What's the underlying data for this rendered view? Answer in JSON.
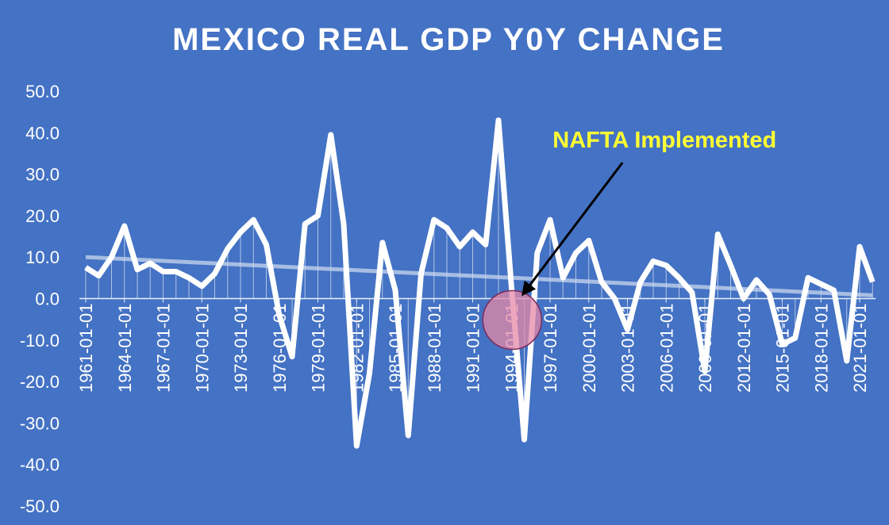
{
  "chart_data": {
    "type": "line",
    "title": "MEXICO REAL GDP Y0Y CHANGE",
    "x": [
      "1961-01-01",
      "1962-01-01",
      "1963-01-01",
      "1964-01-01",
      "1965-01-01",
      "1966-01-01",
      "1967-01-01",
      "1968-01-01",
      "1969-01-01",
      "1970-01-01",
      "1971-01-01",
      "1972-01-01",
      "1973-01-01",
      "1974-01-01",
      "1975-01-01",
      "1976-01-01",
      "1977-01-01",
      "1978-01-01",
      "1979-01-01",
      "1980-01-01",
      "1981-01-01",
      "1982-01-01",
      "1983-01-01",
      "1984-01-01",
      "1985-01-01",
      "1986-01-01",
      "1987-01-01",
      "1988-01-01",
      "1989-01-01",
      "1990-01-01",
      "1991-01-01",
      "1992-01-01",
      "1993-01-01",
      "1994-01-01",
      "1995-01-01",
      "1996-01-01",
      "1997-01-01",
      "1998-01-01",
      "1999-01-01",
      "2000-01-01",
      "2001-01-01",
      "2002-01-01",
      "2003-01-01",
      "2004-01-01",
      "2005-01-01",
      "2006-01-01",
      "2007-01-01",
      "2008-01-01",
      "2009-01-01",
      "2010-01-01",
      "2011-01-01",
      "2012-01-01",
      "2013-01-01",
      "2014-01-01",
      "2015-01-01",
      "2016-01-01",
      "2017-01-01",
      "2018-01-01",
      "2019-01-01",
      "2020-01-01",
      "2021-01-01",
      "2022-01-01"
    ],
    "values": [
      7.5,
      5.5,
      10,
      17.5,
      7,
      8.5,
      6.5,
      6.5,
      5,
      3,
      6,
      12,
      16,
      19,
      13,
      -4,
      -14,
      18,
      20,
      39.5,
      18,
      -35.5,
      -18,
      13.5,
      2,
      -33,
      6,
      19,
      17,
      12.5,
      16,
      13,
      43,
      3,
      -34,
      11,
      19,
      5,
      11,
      14,
      4,
      0,
      -7.5,
      4,
      9,
      8,
      5,
      1.5,
      -17.5,
      15.5,
      8,
      0,
      4.5,
      1,
      -11,
      -9.5,
      5,
      3.5,
      2,
      -15,
      12.5,
      4
    ],
    "color": "#ffffff",
    "trendline": {
      "color": "#c9d6ee",
      "values": [
        10,
        0.8
      ]
    },
    "ylim": [
      -50,
      50
    ],
    "yticks": [
      {
        "value": 50,
        "label": "50.0"
      },
      {
        "value": 40,
        "label": "40.0"
      },
      {
        "value": 30,
        "label": "30.0"
      },
      {
        "value": 20,
        "label": "20.0"
      },
      {
        "value": 10,
        "label": "10.0"
      },
      {
        "value": 0,
        "label": "0.0"
      },
      {
        "value": -10,
        "label": "-10.0"
      },
      {
        "value": -20,
        "label": "-20.0"
      },
      {
        "value": -30,
        "label": "-30.0"
      },
      {
        "value": -40,
        "label": "-40.0"
      },
      {
        "value": -50,
        "label": "-50.0"
      }
    ],
    "xticks": [
      "1961-01-01",
      "1964-01-01",
      "1967-01-01",
      "1970-01-01",
      "1973-01-01",
      "1976-01-01",
      "1979-01-01",
      "1982-01-01",
      "1985-01-01",
      "1988-01-01",
      "1991-01-01",
      "1994-01-01",
      "1997-01-01",
      "2000-01-01",
      "2003-01-01",
      "2006-01-01",
      "2009-01-01",
      "2012-01-01",
      "2015-01-01",
      "2018-01-01",
      "2021-01-01"
    ],
    "annotation": {
      "text": "NAFTA Implemented",
      "x": "1994-01-01",
      "color": "#ffff33",
      "highlight": "#e68aa8"
    }
  }
}
